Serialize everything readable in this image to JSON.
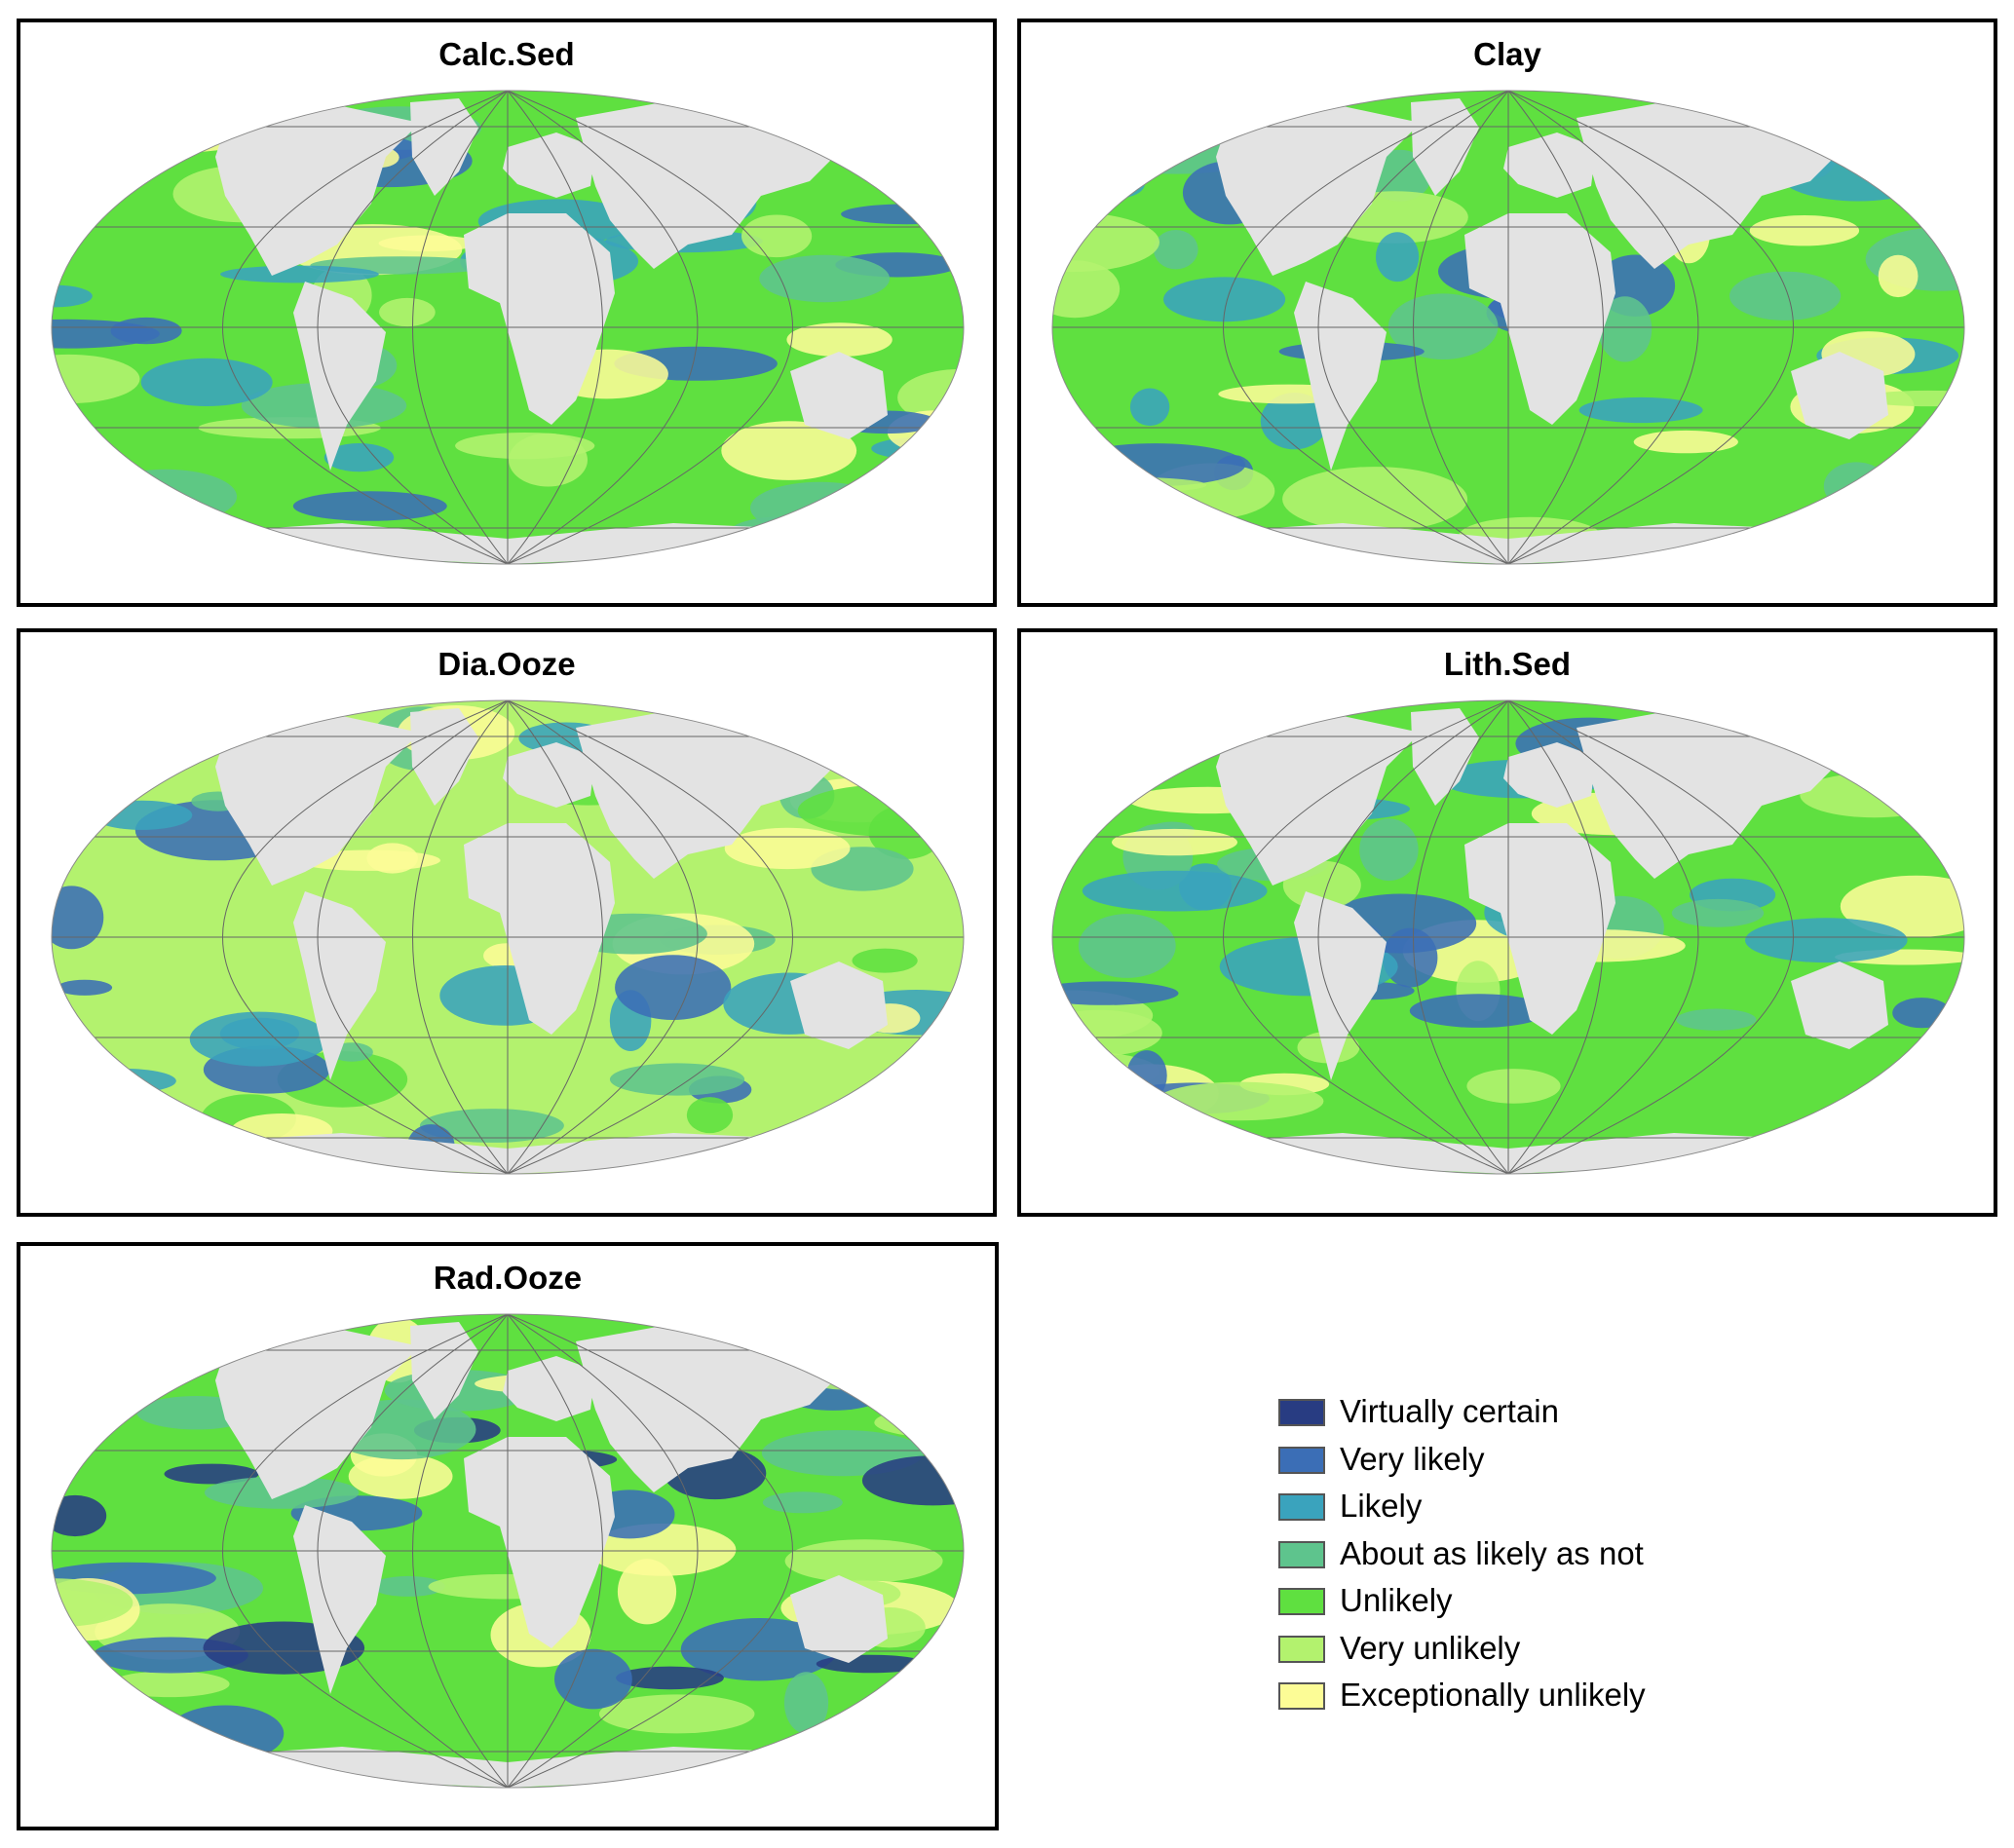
{
  "colors": {
    "land": "#e3e3e3",
    "graticule": "#666666",
    "background": "#ffffff"
  },
  "legend": {
    "items": [
      {
        "label": "Virtually certain",
        "color": "#283c82"
      },
      {
        "label": "Very likely",
        "color": "#3b6eb6"
      },
      {
        "label": "Likely",
        "color": "#3aa3bd"
      },
      {
        "label": "About as likely as not",
        "color": "#5ec48d"
      },
      {
        "label": "Unlikely",
        "color": "#5fe040"
      },
      {
        "label": "Very unlikely",
        "color": "#b3f26e"
      },
      {
        "label": "Exceptionally unlikely",
        "color": "#fcfc96"
      }
    ]
  },
  "panels": [
    {
      "title": "Calc.Sed",
      "base": "#5fe040",
      "patches": [
        "#3aa3bd",
        "#5ec48d",
        "#b3f26e",
        "#fcfc96",
        "#3b6eb6"
      ]
    },
    {
      "title": "Clay",
      "base": "#5fe040",
      "patches": [
        "#5ec48d",
        "#3aa3bd",
        "#3b6eb6",
        "#b3f26e",
        "#fcfc96"
      ]
    },
    {
      "title": "Dia.Ooze",
      "base": "#b3f26e",
      "patches": [
        "#5fe040",
        "#fcfc96",
        "#5ec48d",
        "#3aa3bd",
        "#3b6eb6"
      ]
    },
    {
      "title": "Lith.Sed",
      "base": "#5fe040",
      "patches": [
        "#b3f26e",
        "#5ec48d",
        "#fcfc96",
        "#3aa3bd",
        "#3b6eb6"
      ]
    },
    {
      "title": "Rad.Ooze",
      "base": "#5fe040",
      "patches": [
        "#b3f26e",
        "#fcfc96",
        "#5ec48d",
        "#3b6eb6",
        "#283c82"
      ]
    }
  ]
}
